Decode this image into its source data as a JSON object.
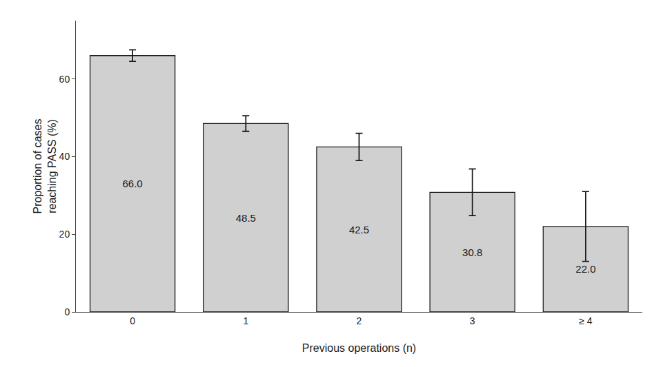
{
  "chart_data": {
    "type": "bar",
    "xlabel": "Previous operations (n)",
    "ylabel": "Proportion of cases\nreaching PASS (%)",
    "categories": [
      "0",
      "1",
      "2",
      "3",
      "≥ 4"
    ],
    "values": [
      66.0,
      48.5,
      42.5,
      30.8,
      22.0
    ],
    "value_labels": [
      "66.0",
      "48.5",
      "42.5",
      "30.8",
      "22.0"
    ],
    "error_lower": [
      1.5,
      2.0,
      3.5,
      6.0,
      9.0
    ],
    "error_upper": [
      1.5,
      2.0,
      3.5,
      6.0,
      9.0
    ],
    "color": "#d0d0d0",
    "ylim": [
      0,
      75
    ],
    "yticks": [
      0,
      20,
      40,
      60
    ],
    "grid": false,
    "data_labels": true
  }
}
